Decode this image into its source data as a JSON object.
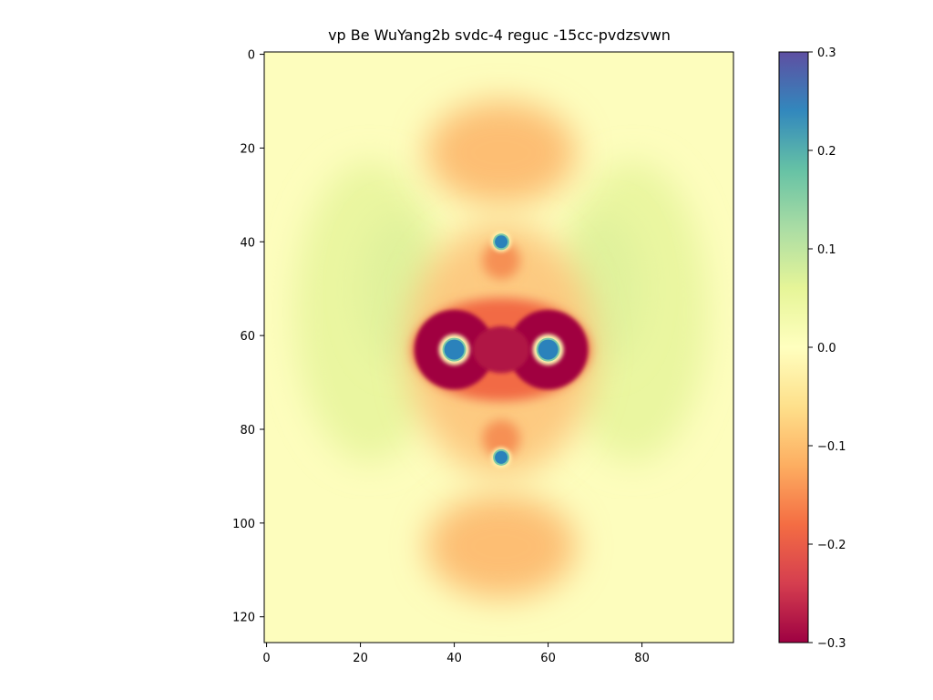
{
  "chart_data": {
    "type": "heatmap",
    "title": "vp Be WuYang2b svdc-4 reguc -15cc-pvdzsvwn",
    "xlabel": "",
    "ylabel": "",
    "xlim": [
      -0.5,
      99.5
    ],
    "ylim": [
      125.5,
      -0.5
    ],
    "y_inverted": true,
    "x_ticks": [
      0,
      20,
      40,
      60,
      80
    ],
    "y_ticks": [
      0,
      20,
      40,
      60,
      80,
      100,
      120
    ],
    "colormap": "Spectral",
    "colorbar": {
      "vmin": -0.3,
      "vmax": 0.3,
      "ticks": [
        0.3,
        0.2,
        0.1,
        0.0,
        -0.1,
        -0.2,
        -0.3
      ],
      "tick_labels": [
        "0.3",
        "0.2",
        "0.1",
        "0.0",
        "−0.1",
        "−0.2",
        "−0.3"
      ]
    },
    "colormap_stops": [
      "#9e0142",
      "#d53e4f",
      "#f46d43",
      "#fdae61",
      "#fee08b",
      "#ffffbf",
      "#e6f598",
      "#abdda4",
      "#66c2a5",
      "#3288bd",
      "#5e4fa2"
    ],
    "features": [
      {
        "kind": "nucleus",
        "x": 40,
        "y": 63
      },
      {
        "kind": "nucleus",
        "x": 60,
        "y": 63
      },
      {
        "kind": "nucleus",
        "x": 50,
        "y": 40
      },
      {
        "kind": "nucleus",
        "x": 50,
        "y": 86
      }
    ],
    "grid": false
  }
}
